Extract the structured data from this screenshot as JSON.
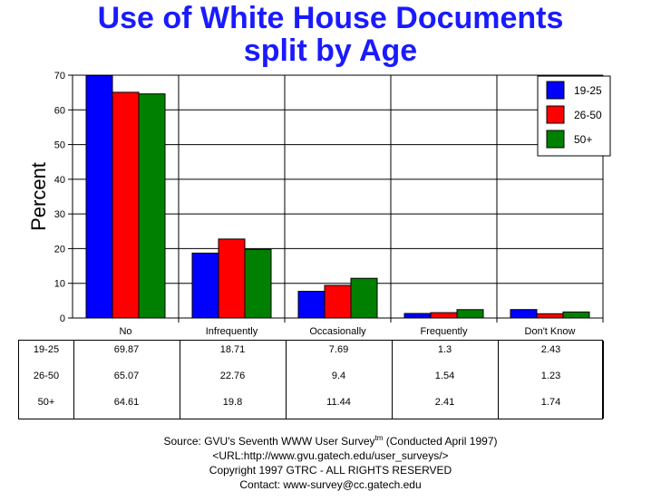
{
  "chart_data": {
    "type": "bar",
    "title": [
      "Use of White House Documents",
      "split by Age"
    ],
    "ylabel": "Percent",
    "xlabel": "",
    "ylim": [
      0,
      70
    ],
    "yticks": [
      0,
      10,
      20,
      30,
      40,
      50,
      60,
      70
    ],
    "grid": true,
    "legend_position": "top-right",
    "categories": [
      "No",
      "Infrequently",
      "Occasionally",
      "Frequently",
      "Don't Know"
    ],
    "series": [
      {
        "name": "19-25",
        "color": "#0000ff",
        "values": [
          69.87,
          18.71,
          7.69,
          1.3,
          2.43
        ],
        "labels": [
          "69.87",
          "18.71",
          "7.69",
          "1.3",
          "2.43"
        ]
      },
      {
        "name": "26-50",
        "color": "#ff0000",
        "values": [
          65.07,
          22.76,
          9.4,
          1.54,
          1.23
        ],
        "labels": [
          "65.07",
          "22.76",
          "9.4",
          "1.54",
          "1.23"
        ]
      },
      {
        "name": "50+",
        "color": "#008000",
        "values": [
          64.61,
          19.8,
          11.44,
          2.41,
          1.74
        ],
        "labels": [
          "64.61",
          "19.8",
          "11.44",
          "2.41",
          "1.74"
        ]
      }
    ]
  },
  "footer": {
    "source_prefix": "Source: GVU's Seventh WWW User Survey",
    "source_sup": "tm",
    "source_suffix": " (Conducted April 1997)",
    "url": "<URL:http://www.gvu.gatech.edu/user_surveys/>",
    "copyright": "Copyright 1997 GTRC - ALL RIGHTS RESERVED",
    "contact": "Contact: www-survey@cc.gatech.edu"
  }
}
